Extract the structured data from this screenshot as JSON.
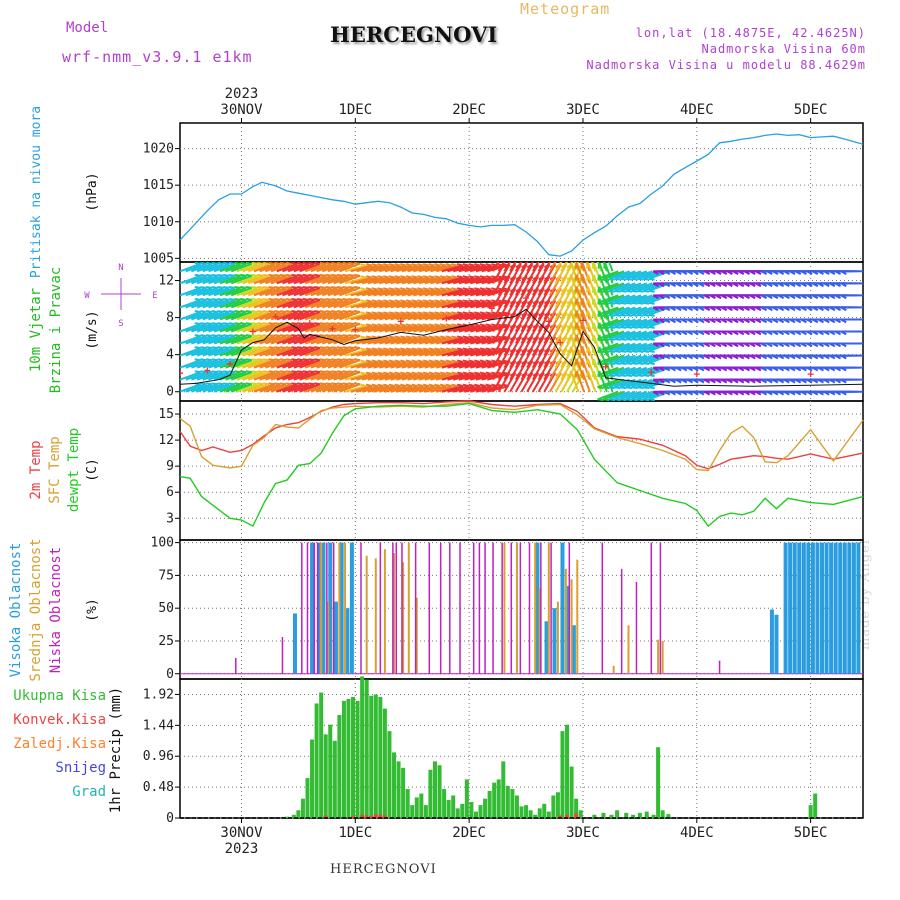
{
  "header": {
    "model_label": "Model",
    "model_name": "wrf-nmm_v3.9.1 e1km",
    "title": "HERCEGNOVI",
    "meteogram": "Meteogram",
    "lonlat": "lon,lat (18.4875E, 42.4625N)",
    "elevation": "Nadmorska Visina 60m",
    "model_elevation": "Nadmorska Visina u modelu 88.4629m"
  },
  "footer": "HERCEGNOVI",
  "watermark": "made by Angel",
  "time_axis": {
    "year_label": "2023",
    "days": [
      "30NOV",
      "1DEC",
      "2DEC",
      "3DEC",
      "4DEC",
      "5DEC"
    ],
    "range_days": [
      -0.54,
      5.46
    ]
  },
  "colors": {
    "pressure": "#2aa0e0",
    "wind_label": "#22bb22",
    "temp2m": "#ee4040",
    "sfc": "#d8a030",
    "dewpt": "#22cc22",
    "high_cloud": "#2a9de0",
    "mid_cloud": "#d8a030",
    "low_cloud": "#c020c0",
    "precip_total": "#33bb33",
    "precip_conv": "#ee4444",
    "precip_frozen": "#ff8030",
    "precip_snow": "#4444ee",
    "precip_grad": "#22b4b4",
    "wind_speed_line": "#111111",
    "gust_markers": "#ee3333"
  },
  "chart_data": [
    {
      "type": "line",
      "panel": "pressure",
      "ylabel_side": "Pritisak na nivou mora",
      "ylabel_unit": "(hPa)",
      "ylim": [
        1004.5,
        1023.5
      ],
      "yticks": [
        1005,
        1010,
        1015,
        1020
      ],
      "series": [
        {
          "x": [
            -0.54,
            -0.42,
            -0.3,
            -0.2,
            -0.1,
            0,
            0.1,
            0.18,
            0.3,
            0.4,
            0.5,
            0.6,
            0.7,
            0.8,
            0.9,
            1,
            1.1,
            1.2,
            1.3,
            1.4,
            1.5,
            1.6,
            1.7,
            1.8,
            1.9,
            2,
            2.1,
            2.2,
            2.3,
            2.4,
            2.5,
            2.6,
            2.7,
            2.8,
            2.9,
            3,
            3.1,
            3.2,
            3.3,
            3.4,
            3.5,
            3.6,
            3.7,
            3.8,
            3.9,
            4,
            4.1,
            4.2,
            4.3,
            4.4,
            4.5,
            4.6,
            4.7,
            4.8,
            4.9,
            5,
            5.1,
            5.2,
            5.3,
            5.46
          ],
          "y": [
            1007.5,
            1009.5,
            1011.5,
            1013,
            1013.8,
            1013.8,
            1014.8,
            1015.4,
            1014.9,
            1014.2,
            1013.9,
            1013.6,
            1013.3,
            1013,
            1012.8,
            1012.4,
            1012.6,
            1012.8,
            1012.6,
            1012,
            1011.2,
            1011,
            1010.6,
            1010.4,
            1009.8,
            1009.5,
            1009.3,
            1009.5,
            1009.5,
            1009.6,
            1008.6,
            1007.3,
            1005.5,
            1005.3,
            1006,
            1007.5,
            1008.5,
            1009.4,
            1010.8,
            1012,
            1012.5,
            1013.8,
            1014.9,
            1016.5,
            1017.4,
            1018.3,
            1019.2,
            1020.8,
            1021,
            1021.3,
            1021.5,
            1021.8,
            1022,
            1021.8,
            1021.9,
            1021.5,
            1021.6,
            1021.7,
            1021.3,
            1020.6
          ]
        }
      ]
    },
    {
      "type": "line",
      "panel": "wind",
      "ylabel_side": "10m Vjetar Brzina i Pravac",
      "ylabel_unit": "(m/s)",
      "compass": [
        "N",
        "S",
        "W",
        "E"
      ],
      "ylim": [
        -1,
        14
      ],
      "yticks": [
        0,
        4,
        8,
        12
      ],
      "series": [
        {
          "name": "wind speed",
          "x": [
            -0.54,
            -0.4,
            -0.3,
            -0.2,
            -0.1,
            0,
            0.1,
            0.2,
            0.3,
            0.4,
            0.5,
            0.55,
            0.6,
            0.7,
            0.8,
            0.9,
            1,
            1.2,
            1.4,
            1.6,
            1.8,
            2,
            2.2,
            2.4,
            2.5,
            2.6,
            2.7,
            2.75,
            2.8,
            2.9,
            3,
            3.1,
            3.2,
            3.4,
            3.6,
            3.8,
            4,
            4.5,
            5,
            5.46
          ],
          "y": [
            0.8,
            0.9,
            1.1,
            1.3,
            1.8,
            4.5,
            5.3,
            5.6,
            6.9,
            7.5,
            6.8,
            5.8,
            6.2,
            5.9,
            5.6,
            5.1,
            5.5,
            5.8,
            6.4,
            6.1,
            6.7,
            7.2,
            7.8,
            8.1,
            8.9,
            7.6,
            6.4,
            5.2,
            4.1,
            2.8,
            6.5,
            4.8,
            1.5,
            1.2,
            0.9,
            0.6,
            0.7,
            0.6,
            0.7,
            0.8
          ]
        }
      ]
    },
    {
      "type": "line",
      "panel": "temperature",
      "ylabel_side": [
        "2m Temp",
        "SFC Temp",
        "dewpt Temp"
      ],
      "ylabel_unit": "(C)",
      "ylim": [
        0.5,
        16.5
      ],
      "yticks": [
        3,
        6,
        9,
        12,
        15
      ],
      "x": [
        -0.54,
        -0.45,
        -0.35,
        -0.25,
        -0.1,
        0,
        0.1,
        0.2,
        0.3,
        0.4,
        0.5,
        0.6,
        0.7,
        0.8,
        0.9,
        1,
        1.2,
        1.4,
        1.6,
        1.8,
        2,
        2.2,
        2.4,
        2.6,
        2.8,
        2.95,
        3.1,
        3.3,
        3.5,
        3.7,
        3.9,
        4,
        4.1,
        4.2,
        4.3,
        4.4,
        4.5,
        4.6,
        4.7,
        4.8,
        5,
        5.2,
        5.46
      ],
      "series": [
        {
          "name": "2m Temp",
          "y": [
            13,
            11.3,
            10.8,
            11.2,
            10.6,
            10.8,
            11.5,
            12.5,
            13.4,
            13.8,
            14,
            14.6,
            15.3,
            15.8,
            16.1,
            16.2,
            16.3,
            16.3,
            16.2,
            16.4,
            16.5,
            16.1,
            15.9,
            16.1,
            16.2,
            15.3,
            13.4,
            12.4,
            12.1,
            11.4,
            10.2,
            9.1,
            8.7,
            9.2,
            9.8,
            10,
            10.2,
            10.1,
            9.9,
            9.8,
            10.4,
            9.8,
            10.5
          ]
        },
        {
          "name": "SFC Temp",
          "y": [
            14.5,
            13.6,
            10.1,
            9.1,
            8.8,
            9,
            11.4,
            12.3,
            13.8,
            13.5,
            13.4,
            14.4,
            15.4,
            15.7,
            15.8,
            15.9,
            15.8,
            15.9,
            15.8,
            16.1,
            16.3,
            15.7,
            15.5,
            16,
            16.1,
            14.9,
            13.3,
            12.3,
            11.6,
            10.8,
            9.8,
            8.6,
            8.5,
            10.8,
            12.8,
            13.6,
            12.3,
            9.5,
            9.4,
            10.2,
            13.2,
            9.6,
            14.3
          ]
        },
        {
          "name": "dewpt Temp",
          "y": [
            7.8,
            7.6,
            5.5,
            4.5,
            3,
            2.8,
            2.1,
            4.8,
            7,
            7.4,
            9.1,
            9.3,
            10.5,
            12.8,
            14.8,
            15.6,
            15.9,
            16,
            15.9,
            15.9,
            16.2,
            15.4,
            15.2,
            15.5,
            15,
            13.2,
            9.8,
            7.1,
            6.2,
            5.3,
            4.7,
            3.9,
            2.1,
            3.2,
            3.6,
            3.4,
            3.8,
            5.3,
            4.1,
            5.3,
            4.8,
            4.6,
            5.5
          ]
        }
      ]
    },
    {
      "type": "bar",
      "panel": "clouds",
      "ylabel_side": [
        "Visoka Oblacnost",
        "Srednja Oblacnost",
        "Niska Oblacnost"
      ],
      "ylabel_unit": "(%)",
      "ylim": [
        -4,
        102
      ],
      "yticks": [
        0,
        25,
        50,
        75,
        100
      ],
      "series": [
        {
          "name": "Visoka Oblacnost",
          "x": [
            0.47,
            0.62,
            0.68,
            0.72,
            0.78,
            0.83,
            0.88,
            0.93,
            0.97,
            2.6,
            2.68,
            2.75,
            2.82,
            2.86,
            2.92,
            4.66,
            4.7,
            4.78,
            4.82,
            4.86,
            4.9,
            4.94,
            4.98,
            5.02,
            5.06,
            5.1,
            5.14,
            5.18,
            5.22,
            5.26,
            5.3,
            5.34,
            5.38,
            5.42
          ],
          "y": [
            46,
            100,
            100,
            100,
            100,
            55,
            100,
            50,
            100,
            100,
            40,
            50,
            100,
            67,
            37,
            49,
            45,
            100,
            100,
            100,
            100,
            100,
            100,
            100,
            100,
            100,
            100,
            100,
            100,
            100,
            100,
            100,
            100,
            100
          ]
        },
        {
          "name": "Srednja Oblacnost",
          "x": [
            0.7,
            0.76,
            0.86,
            0.91,
            1.1,
            1.18,
            1.26,
            1.34,
            1.42,
            1.47,
            1.54,
            2.31,
            2.42,
            2.58,
            2.62,
            2.7,
            2.78,
            2.85,
            2.9,
            2.95,
            3.27,
            3.4,
            3.66,
            3.7
          ],
          "y": [
            100,
            55,
            100,
            100,
            90,
            88,
            95,
            92,
            85,
            100,
            58,
            100,
            100,
            100,
            65,
            100,
            55,
            80,
            72,
            87,
            6,
            37,
            26,
            25
          ]
        },
        {
          "name": "Niska Oblacnost",
          "x": [
            -0.05,
            0.36,
            0.53,
            0.58,
            0.64,
            0.67,
            0.75,
            0.81,
            1.05,
            1.22,
            1.33,
            1.36,
            1.41,
            1.53,
            1.65,
            1.75,
            1.83,
            1.92,
            2.04,
            2.09,
            2.14,
            2.21,
            2.29,
            2.37,
            2.45,
            2.53,
            2.63,
            2.72,
            2.88,
            3.17,
            3.34,
            3.47,
            3.6,
            3.68,
            4.2
          ],
          "y": [
            12,
            28,
            100,
            100,
            100,
            100,
            100,
            100,
            100,
            100,
            100,
            100,
            100,
            100,
            100,
            100,
            100,
            100,
            100,
            100,
            100,
            100,
            100,
            100,
            100,
            100,
            100,
            100,
            100,
            100,
            80,
            70,
            100,
            100,
            10
          ]
        }
      ]
    },
    {
      "type": "bar",
      "panel": "precipitation",
      "legend": [
        "Ukupna Kisa",
        "Konvek.Kisa",
        "Zaledj.Kisa",
        "Snijeg",
        "Grad"
      ],
      "ylabel_unit": "1hr Precip (mm)",
      "ylim": [
        0,
        2.16
      ],
      "yticks": [
        0,
        0.48,
        0.96,
        1.44,
        1.92
      ],
      "series": [
        {
          "name": "Ukupna Kisa",
          "x": [
            0.4,
            0.46,
            0.5,
            0.54,
            0.58,
            0.62,
            0.66,
            0.7,
            0.74,
            0.78,
            0.82,
            0.86,
            0.9,
            0.94,
            0.98,
            1.02,
            1.06,
            1.1,
            1.14,
            1.18,
            1.22,
            1.26,
            1.3,
            1.34,
            1.38,
            1.42,
            1.46,
            1.5,
            1.54,
            1.58,
            1.62,
            1.66,
            1.7,
            1.74,
            1.78,
            1.82,
            1.86,
            1.9,
            1.94,
            1.98,
            2.02,
            2.06,
            2.1,
            2.14,
            2.18,
            2.22,
            2.26,
            2.3,
            2.34,
            2.38,
            2.42,
            2.46,
            2.5,
            2.54,
            2.58,
            2.62,
            2.66,
            2.7,
            2.74,
            2.78,
            2.82,
            2.86,
            2.9,
            2.94,
            2.98,
            3.1,
            3.18,
            3.25,
            3.3,
            3.38,
            3.44,
            3.5,
            3.56,
            3.62,
            3.66,
            3.7,
            3.75,
            5.0,
            5.04
          ],
          "y": [
            0.02,
            0.05,
            0.12,
            0.3,
            0.62,
            1.22,
            1.78,
            1.95,
            1.3,
            1.45,
            1.2,
            1.6,
            1.82,
            1.85,
            1.88,
            1.82,
            2.2,
            2.15,
            1.9,
            1.92,
            1.88,
            1.7,
            1.35,
            1.02,
            0.88,
            0.78,
            0.45,
            0.2,
            0.32,
            0.38,
            0.2,
            0.75,
            0.88,
            0.82,
            0.45,
            0.28,
            0.35,
            0.15,
            0.22,
            0.6,
            0.25,
            0.1,
            0.2,
            0.3,
            0.42,
            0.55,
            0.6,
            0.88,
            0.5,
            0.45,
            0.35,
            0.18,
            0.2,
            0.12,
            0.05,
            0.15,
            0.22,
            0.1,
            0.35,
            0.4,
            1.35,
            1.45,
            0.8,
            0.3,
            0.12,
            0.05,
            0.08,
            0.05,
            0.12,
            0.08,
            0.05,
            0.08,
            0.1,
            0.05,
            1.1,
            0.12,
            0.06,
            0.2,
            0.38
          ]
        },
        {
          "name": "Konvek.Kisa",
          "x": [
            0.74,
            0.98,
            1.06,
            1.1,
            1.14,
            1.18,
            1.22,
            1.26,
            2.8,
            2.86,
            2.94
          ],
          "y": [
            0.04,
            0.03,
            0.05,
            0.04,
            0.03,
            0.06,
            0.05,
            0.04,
            0.04,
            0.05,
            0.07
          ]
        }
      ]
    }
  ]
}
